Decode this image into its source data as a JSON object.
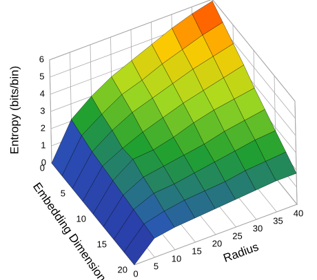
{
  "chart_data": {
    "type": "surface",
    "xlabel": "Radius",
    "ylabel": "Embedding Dimension",
    "zlabel": "Entropy (bits/bin)",
    "x": [
      0,
      5,
      10,
      15,
      20,
      25,
      30,
      35,
      40
    ],
    "y": [
      0,
      2.5,
      5,
      7.5,
      10,
      12.5,
      15,
      17.5,
      20
    ],
    "z": [
      [
        0,
        2.1,
        3.0,
        3.7,
        4.2,
        4.7,
        5.2,
        5.6,
        5.9
      ],
      [
        0,
        1.9,
        2.7,
        3.4,
        3.8,
        4.3,
        4.7,
        5.1,
        5.4
      ],
      [
        0,
        1.7,
        2.5,
        3.1,
        3.5,
        3.9,
        4.3,
        4.6,
        4.9
      ],
      [
        0,
        1.6,
        2.2,
        2.7,
        3.1,
        3.5,
        3.8,
        4.1,
        4.4
      ],
      [
        0,
        1.5,
        2.3,
        2.4,
        2.7,
        3.1,
        3.4,
        3.6,
        3.8
      ],
      [
        0,
        1.4,
        2.0,
        2.2,
        2.4,
        2.6,
        2.9,
        3.1,
        3.3
      ],
      [
        0,
        1.3,
        1.8,
        1.9,
        2.1,
        2.3,
        2.5,
        2.7,
        2.8
      ],
      [
        0,
        1.2,
        1.5,
        1.7,
        1.8,
        1.9,
        2.1,
        2.2,
        2.3
      ],
      [
        0,
        1.1,
        1.3,
        1.4,
        1.5,
        1.6,
        1.7,
        1.8,
        1.8
      ]
    ],
    "xlim": [
      0,
      40
    ],
    "ylim": [
      0,
      20
    ],
    "zlim": [
      0,
      6
    ],
    "xticks": [
      0,
      5,
      10,
      15,
      20,
      25,
      30,
      35,
      40
    ],
    "yticks": [
      0,
      5,
      10,
      15,
      20
    ],
    "zticks": [
      0,
      1,
      2,
      3,
      4,
      5,
      6
    ],
    "colormap": [
      "#2a2a9a",
      "#2a55b8",
      "#20a030",
      "#a8dc20",
      "#ffc800",
      "#ff2000"
    ],
    "edgecolor": "#000000",
    "grid": true
  }
}
